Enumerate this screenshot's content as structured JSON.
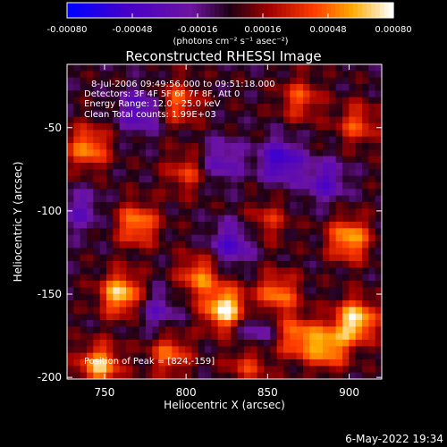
{
  "chart_data": {
    "type": "heatmap",
    "title": "Reconstructed RHESSI Image",
    "xlabel": "Heliocentric X (arcsec)",
    "ylabel": "Heliocentric Y (arcsec)",
    "xlim": [
      727,
      920
    ],
    "ylim": [
      -201,
      -12
    ],
    "x_ticks": [
      750,
      800,
      850,
      900
    ],
    "y_ticks": [
      -50,
      -100,
      -150,
      -200
    ],
    "x_tick_labels": [
      "750",
      "800",
      "850",
      "900"
    ],
    "y_tick_labels": [
      "-50",
      "-100",
      "-150",
      "-200"
    ],
    "colorbar": {
      "range": [
        -0.0008,
        0.0008
      ],
      "ticks": [
        -0.0008,
        -0.00048,
        -0.00016,
        0.00016,
        0.00048,
        0.0008
      ],
      "tick_labels": [
        "-0.00080",
        "-0.00048",
        "-0.00016",
        "0.00016",
        "0.00048",
        "0.00080"
      ],
      "unit_label": "(photons cm⁻² s⁻¹ asec⁻²)"
    },
    "annotations": [
      "8-Jul-2006 09:49:56.000 to 09:51:18.000",
      "Detectors: 3F 4F 5F 6F 7F 8F, Att 0",
      "Energy Range: 12.0 - 25.0 keV",
      "Clean     Total counts: 1.99E+03"
    ],
    "peak_label": "Position of Peak = [824,-159]",
    "grid": false,
    "hotspots": [
      {
        "x": 824,
        "y": -159,
        "v": 0.0008
      },
      {
        "x": 904,
        "y": -166,
        "v": 0.00075
      },
      {
        "x": 760,
        "y": -150,
        "v": 0.0007
      },
      {
        "x": 747,
        "y": -193,
        "v": 0.00065
      },
      {
        "x": 887,
        "y": -182,
        "v": 0.0006
      },
      {
        "x": 900,
        "y": -117,
        "v": 0.00062
      },
      {
        "x": 770,
        "y": -108,
        "v": 0.00055
      },
      {
        "x": 740,
        "y": -62,
        "v": 0.00055
      },
      {
        "x": 808,
        "y": -139,
        "v": 0.0005
      },
      {
        "x": 856,
        "y": -150,
        "v": 0.00052
      },
      {
        "x": 868,
        "y": -176,
        "v": 0.0005
      },
      {
        "x": 790,
        "y": -186,
        "v": 0.00045
      },
      {
        "x": 795,
        "y": -35,
        "v": 0.00045
      },
      {
        "x": 870,
        "y": -33,
        "v": 0.0004
      },
      {
        "x": 905,
        "y": -48,
        "v": 0.0004
      },
      {
        "x": 800,
        "y": -77,
        "v": 0.00035
      },
      {
        "x": 850,
        "y": -106,
        "v": 0.0003
      },
      {
        "x": 838,
        "y": -192,
        "v": 0.00035
      },
      {
        "x": 772,
        "y": -40,
        "v": -0.00045
      },
      {
        "x": 822,
        "y": -70,
        "v": -0.00035
      },
      {
        "x": 858,
        "y": -70,
        "v": -0.00055
      },
      {
        "x": 885,
        "y": -82,
        "v": -0.0004
      },
      {
        "x": 828,
        "y": -120,
        "v": -0.00045
      },
      {
        "x": 782,
        "y": -160,
        "v": -0.0003
      },
      {
        "x": 842,
        "y": -172,
        "v": -0.0003
      },
      {
        "x": 735,
        "y": -100,
        "v": -0.0003
      }
    ]
  },
  "footer": {
    "timestamp": "6-May-2022 19:34"
  }
}
